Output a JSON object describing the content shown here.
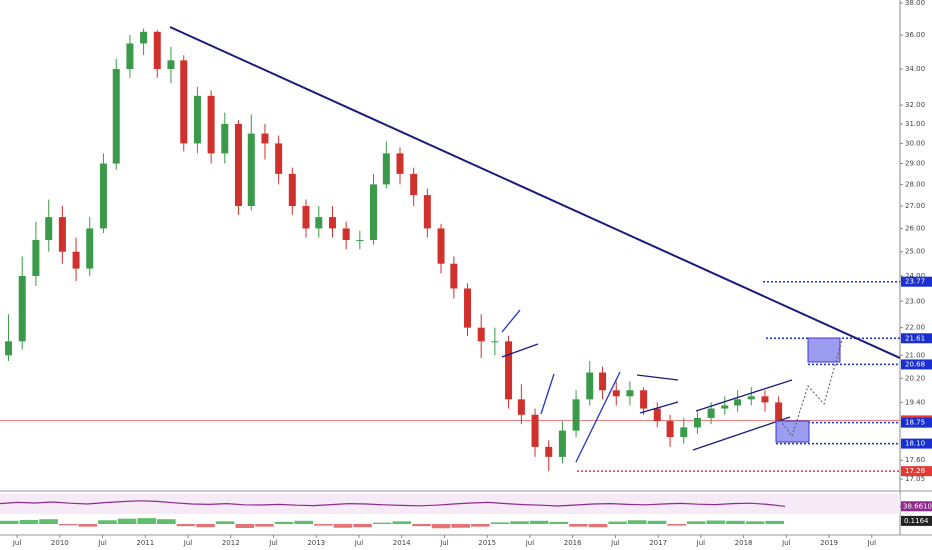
{
  "chart_data": {
    "type": "candlestick",
    "x": [
      2009.4,
      2009.56,
      2009.72,
      2009.87,
      2010.03,
      2010.19,
      2010.35,
      2010.51,
      2010.66,
      2010.82,
      2010.98,
      2011.14,
      2011.3,
      2011.45,
      2011.61,
      2011.77,
      2011.93,
      2012.09,
      2012.24,
      2012.4,
      2012.56,
      2012.72,
      2012.88,
      2013.03,
      2013.19,
      2013.35,
      2013.51,
      2013.67,
      2013.82,
      2013.98,
      2014.14,
      2014.3,
      2014.46,
      2014.61,
      2014.77,
      2014.93,
      2015.09,
      2015.25,
      2015.4,
      2015.56,
      2015.72,
      2015.88,
      2016.04,
      2016.2,
      2016.35,
      2016.51,
      2016.67,
      2016.83,
      2016.99,
      2017.14,
      2017.3,
      2017.46,
      2017.62,
      2017.78,
      2017.93,
      2018.09,
      2018.25,
      2018.41
    ],
    "open": [
      21.0,
      21.5,
      24.0,
      25.5,
      26.5,
      25.0,
      24.3,
      26.0,
      29.0,
      34.0,
      35.5,
      36.2,
      34.0,
      34.5,
      30.0,
      32.5,
      29.5,
      31.0,
      27.0,
      30.5,
      30.0,
      28.5,
      27.0,
      26.0,
      26.5,
      26.0,
      25.5,
      25.5,
      28.0,
      29.5,
      28.5,
      27.5,
      26.0,
      24.5,
      23.5,
      22.0,
      21.5,
      21.5,
      19.5,
      19.0,
      18.0,
      17.7,
      18.5,
      19.5,
      20.4,
      19.8,
      19.6,
      19.8,
      19.2,
      18.8,
      18.3,
      18.6,
      18.9,
      19.2,
      19.3,
      19.5,
      19.6,
      19.4
    ],
    "high": [
      22.5,
      24.8,
      26.3,
      27.3,
      27.0,
      25.6,
      26.5,
      29.5,
      34.6,
      36.0,
      36.4,
      36.3,
      35.3,
      34.8,
      33.0,
      32.8,
      31.6,
      31.2,
      31.5,
      31.0,
      30.4,
      28.8,
      27.3,
      27.0,
      27.0,
      26.3,
      25.9,
      28.5,
      30.1,
      29.8,
      28.8,
      27.8,
      26.2,
      24.8,
      23.7,
      22.5,
      22.0,
      21.7,
      20.0,
      19.2,
      18.2,
      18.8,
      19.8,
      20.8,
      20.6,
      20.1,
      20.1,
      19.9,
      19.4,
      19.0,
      18.9,
      19.1,
      19.4,
      19.6,
      19.8,
      19.9,
      19.8,
      19.6
    ],
    "low": [
      20.8,
      21.2,
      23.6,
      25.0,
      24.5,
      23.8,
      24.0,
      25.8,
      28.7,
      33.5,
      34.8,
      33.5,
      33.2,
      29.6,
      29.5,
      29.0,
      29.0,
      26.6,
      26.8,
      29.2,
      28.0,
      26.6,
      25.6,
      25.6,
      25.6,
      25.1,
      25.1,
      25.3,
      27.8,
      28.0,
      27.0,
      25.6,
      24.1,
      23.1,
      21.7,
      20.9,
      21.0,
      19.2,
      18.7,
      17.7,
      17.28,
      17.5,
      18.3,
      19.3,
      19.5,
      19.3,
      19.3,
      19.0,
      18.6,
      18.0,
      18.1,
      18.4,
      18.7,
      19.0,
      19.1,
      19.3,
      19.1,
      18.6
    ],
    "close": [
      21.5,
      24.0,
      25.5,
      26.5,
      25.0,
      24.3,
      26.0,
      29.0,
      34.0,
      35.5,
      36.2,
      34.0,
      34.5,
      30.0,
      32.5,
      29.5,
      31.0,
      27.0,
      30.5,
      30.0,
      28.5,
      27.0,
      26.0,
      26.5,
      26.0,
      25.5,
      25.5,
      28.0,
      29.5,
      28.5,
      27.5,
      26.0,
      24.5,
      23.5,
      22.0,
      21.5,
      21.5,
      19.5,
      19.0,
      18.0,
      17.7,
      18.5,
      19.5,
      20.4,
      19.8,
      19.6,
      19.8,
      19.2,
      18.8,
      18.3,
      18.6,
      18.9,
      19.2,
      19.3,
      19.5,
      19.6,
      19.4,
      18.82
    ],
    "up_color": "#3a9a4a",
    "down_color": "#d0312d",
    "log_scale": true,
    "ylim": [
      16.74,
      38.19
    ],
    "yticks": [
      {
        "value": 38,
        "label": "38.00"
      },
      {
        "value": 36,
        "label": "36.00"
      },
      {
        "value": 34,
        "label": "34.00"
      },
      {
        "value": 32,
        "label": "32.00"
      },
      {
        "value": 31,
        "label": "31.00"
      },
      {
        "value": 30,
        "label": "30.00"
      },
      {
        "value": 29,
        "label": "29.00"
      },
      {
        "value": 28,
        "label": "28.00"
      },
      {
        "value": 27,
        "label": "27.00"
      },
      {
        "value": 26,
        "label": "26.00"
      },
      {
        "value": 25,
        "label": "25.00"
      },
      {
        "value": 24,
        "label": "24.00"
      },
      {
        "value": 23,
        "label": "23.00"
      },
      {
        "value": 22,
        "label": "22.00"
      },
      {
        "value": 21,
        "label": "21.00"
      },
      {
        "value": 20.2,
        "label": "20.20"
      },
      {
        "value": 19.4,
        "label": "19.40"
      },
      {
        "value": 17.6,
        "label": "17.60"
      },
      {
        "value": 17.05,
        "label": "17.05"
      }
    ],
    "xlim": [
      2009.3,
      2019.83
    ],
    "xticks": [
      {
        "value": 2009.5,
        "label": "Jul"
      },
      2010,
      {
        "value": 2010.5,
        "label": "Jul"
      },
      2011,
      {
        "value": 2011.5,
        "label": "Jul"
      },
      2012,
      {
        "value": 2012.5,
        "label": "Jul"
      },
      2013,
      {
        "value": 2013.5,
        "label": "Jul"
      },
      2014,
      {
        "value": 2014.5,
        "label": "Jul"
      },
      2015,
      {
        "value": 2015.5,
        "label": "Jul"
      },
      2016,
      {
        "value": 2016.5,
        "label": "Jul"
      },
      2017,
      {
        "value": 2017.5,
        "label": "Jul"
      },
      2018,
      {
        "value": 2018.5,
        "label": "Jul"
      },
      2019,
      {
        "value": 2019.5,
        "label": "Jul"
      }
    ],
    "price_levels": [
      {
        "value": 23.77,
        "color": "#1a2fd0"
      },
      {
        "value": 21.61,
        "color": "#1a2fd0"
      },
      {
        "value": 20.68,
        "color": "#1a2fd0"
      },
      {
        "value": 18.82,
        "color": "#e53935"
      },
      {
        "value": 18.75,
        "color": "#1a2fd0"
      },
      {
        "value": {
          "value": 18.1,
          "label": "18.10"
        },
        "color": "#1a2fd0"
      },
      {
        "value": 17.28,
        "color": "#e53935"
      }
    ],
    "rsi": {
      "color": "#8e2a8e",
      "ylim": [
        0,
        100
      ],
      "values": [
        52,
        58,
        55,
        60,
        54,
        50,
        57,
        62,
        66,
        63,
        56,
        50,
        48,
        52,
        46,
        45,
        48,
        44,
        42,
        47,
        52,
        50,
        46,
        43,
        41,
        44,
        50,
        55,
        58,
        52,
        47,
        44,
        40,
        45,
        50,
        52,
        48,
        46,
        50,
        53,
        49,
        47,
        52,
        54,
        48,
        38.661
      ],
      "last_label": {
        "value": 38.661,
        "label": "38.6610"
      }
    },
    "osc": {
      "up_color": "#5fbf6f",
      "down_color": "#e57373",
      "ylim": [
        -0.3,
        0.3
      ],
      "values": [
        0.12,
        0.15,
        0.18,
        -0.05,
        -0.1,
        0.14,
        0.2,
        0.22,
        0.18,
        -0.08,
        -0.12,
        0.1,
        -0.15,
        -0.1,
        0.08,
        0.12,
        -0.06,
        -0.14,
        -0.12,
        0.05,
        0.1,
        -0.08,
        -0.16,
        -0.14,
        -0.1,
        0.06,
        0.1,
        0.12,
        0.08,
        -0.1,
        -0.12,
        0.09,
        0.14,
        0.12,
        -0.06,
        0.1,
        0.13,
        0.12,
        0.1,
        0.1164
      ],
      "last_label": 0.1164
    }
  }
}
